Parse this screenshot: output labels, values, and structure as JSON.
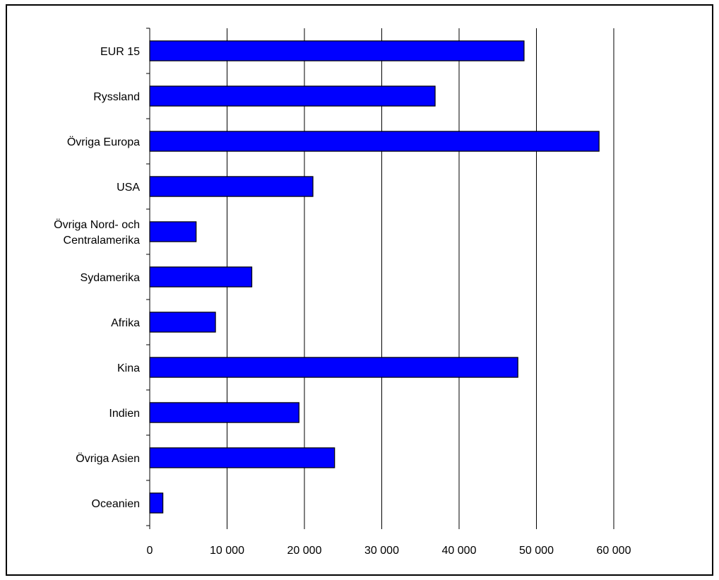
{
  "chart_data": {
    "type": "bar",
    "orientation": "horizontal",
    "categories": [
      "EUR 15",
      "Ryssland",
      "Övriga Europa",
      "USA",
      "Övriga Nord- och Centralamerika",
      "Sydamerika",
      "Afrika",
      "Kina",
      "Indien",
      "Övriga Asien",
      "Oceanien"
    ],
    "category_label_lines": [
      [
        "EUR 15"
      ],
      [
        "Ryssland"
      ],
      [
        "Övriga Europa"
      ],
      [
        "USA"
      ],
      [
        "Övriga Nord- och",
        "Centralamerika"
      ],
      [
        "Sydamerika"
      ],
      [
        "Afrika"
      ],
      [
        "Kina"
      ],
      [
        "Indien"
      ],
      [
        "Övriga Asien"
      ],
      [
        "Oceanien"
      ]
    ],
    "values": [
      48400,
      36900,
      58100,
      21100,
      6000,
      13200,
      8500,
      47600,
      19300,
      23900,
      1700
    ],
    "xlim": [
      0,
      60000
    ],
    "xticks": [
      0,
      10000,
      20000,
      30000,
      40000,
      50000,
      60000
    ],
    "xtick_labels": [
      "0",
      "10 000",
      "20 000",
      "30 000",
      "40 000",
      "50 000",
      "60 000"
    ],
    "grid": "vertical",
    "legend": "none",
    "bar_color": "#0000ff",
    "bar_edge_color": "#000000",
    "title": "",
    "xlabel": "",
    "ylabel": ""
  }
}
